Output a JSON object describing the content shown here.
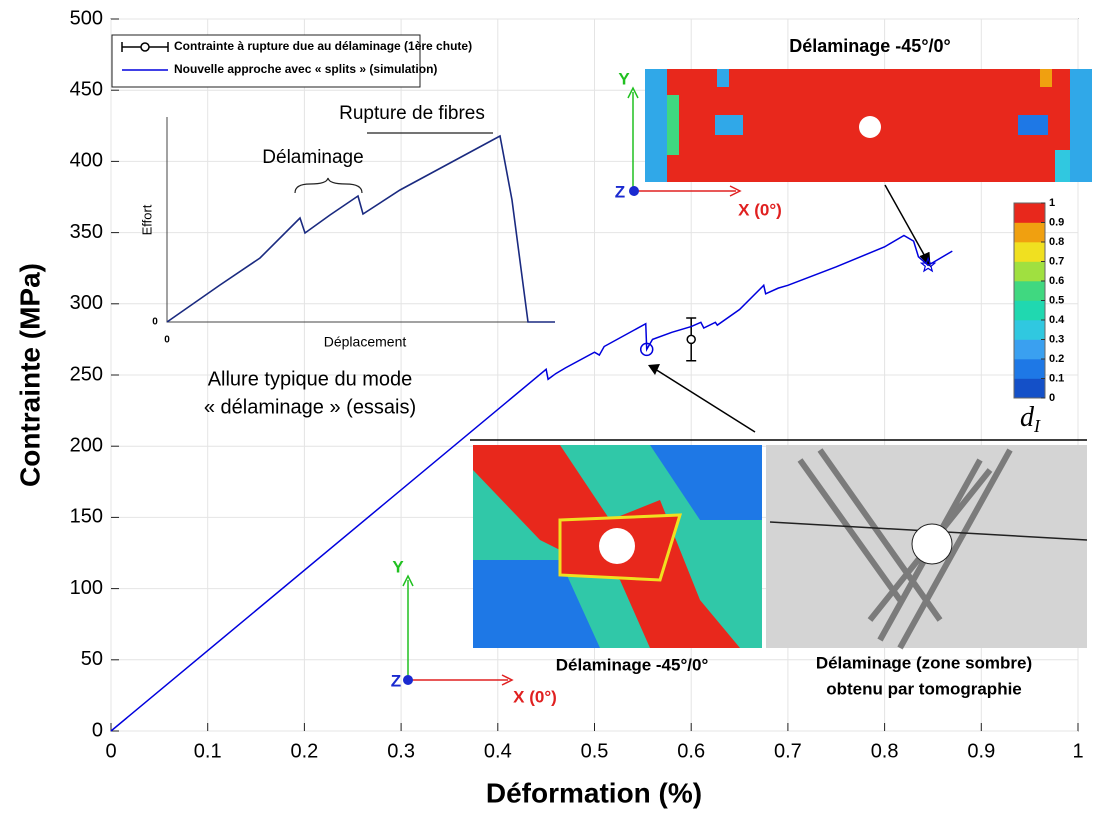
{
  "chart_data": {
    "type": "line",
    "x_label": "Déformation (%)",
    "y_label": "Contrainte (MPa)",
    "xlim": [
      0,
      1
    ],
    "xticks": [
      0,
      0.1,
      0.2,
      0.3,
      0.4,
      0.5,
      0.6,
      0.7,
      0.8,
      0.9,
      1
    ],
    "ylim": [
      0,
      500
    ],
    "yticks": [
      0,
      50,
      100,
      150,
      200,
      250,
      300,
      350,
      400,
      450,
      500
    ],
    "grid": true,
    "legend": "upper left",
    "series": [
      {
        "name": "Contrainte à rupture due au délaminage (1ère chute)",
        "kind": "errorbar",
        "color": "#000000",
        "x": [
          0.6
        ],
        "values": [
          275
        ],
        "errors": [
          15
        ]
      },
      {
        "name": "Nouvelle approche avec « splits » (simulation)",
        "kind": "line",
        "color": "#0000dd",
        "x": [
          0,
          0.45,
          0.452,
          0.46,
          0.47,
          0.5,
          0.505,
          0.51,
          0.553,
          0.554,
          0.56,
          0.58,
          0.6,
          0.61,
          0.613,
          0.625,
          0.627,
          0.65,
          0.675,
          0.677,
          0.69,
          0.7,
          0.75,
          0.8,
          0.82,
          0.83,
          0.835,
          0.845,
          0.87
        ],
        "values": [
          0,
          254,
          247,
          251,
          255,
          266,
          264,
          270,
          286,
          268,
          275,
          280,
          284,
          287,
          283,
          287,
          285,
          296,
          313,
          307,
          311,
          313,
          326,
          340,
          348,
          344,
          333,
          327,
          337
        ]
      }
    ]
  },
  "inset_plot": {
    "x_label": "Déplacement",
    "y_label": "Effort",
    "origin_labels": [
      "0",
      "0"
    ],
    "annotations": [
      "Délaminage",
      "Rupture de fibres"
    ],
    "caption": [
      "Allure typique du mode",
      "« délaminage » (essais)"
    ]
  },
  "image_top": {
    "title": "Délaminage -45°/0°",
    "axes": [
      "Y",
      "Z",
      "X (0°)"
    ]
  },
  "image_bottom_left": {
    "caption": "Délaminage -45°/0°",
    "axes": [
      "Y",
      "Z",
      "X (0°)"
    ]
  },
  "image_bottom_right": {
    "caption": [
      "Délaminage (zone sombre)",
      "obtenu par tomographie"
    ]
  },
  "colorbar": {
    "label": "d",
    "subscript": "I",
    "lim": [
      0,
      1
    ],
    "ticks": [
      0,
      0.1,
      0.2,
      0.3,
      0.4,
      0.5,
      0.6,
      0.7,
      0.8,
      0.9,
      1
    ],
    "colors": [
      "#1450c8",
      "#1e78e6",
      "#3aa0f0",
      "#30c8e0",
      "#20d8b0",
      "#40d880",
      "#a0e040",
      "#f0e020",
      "#f0a010",
      "#e8281c"
    ]
  }
}
